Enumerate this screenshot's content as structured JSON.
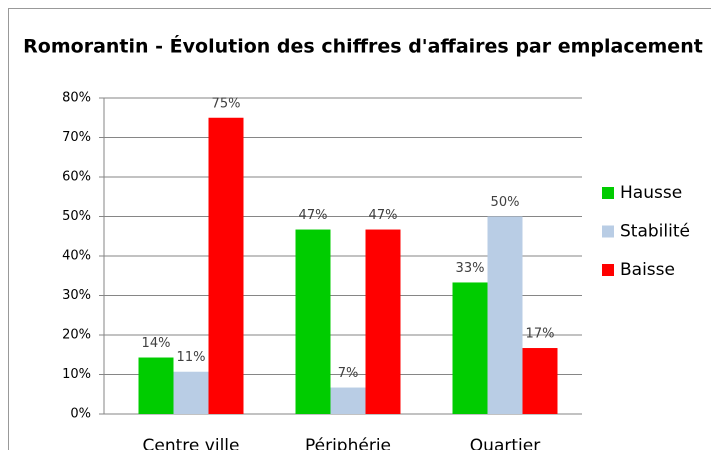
{
  "chart_data": {
    "type": "bar",
    "title": "Romorantin - Évolution des chiffres d'affaires par emplacement",
    "categories": [
      "Centre ville",
      "Périphérie",
      "Quartier"
    ],
    "series": [
      {
        "name": "Hausse",
        "color": "#00cc00",
        "values": [
          14.3,
          46.7,
          33.3
        ],
        "value_labels": [
          "14%",
          "47%",
          "33%"
        ]
      },
      {
        "name": "Stabilité",
        "color": "#b9cde5",
        "values": [
          10.7,
          6.7,
          50
        ],
        "value_labels": [
          "11%",
          "7%",
          "50%"
        ]
      },
      {
        "name": "Baisse",
        "color": "#ff0000",
        "values": [
          75,
          46.7,
          16.7
        ],
        "value_labels": [
          "75%",
          "47%",
          "17%"
        ]
      }
    ],
    "ylim": [
      0,
      80
    ],
    "yticks": [
      {
        "value": 0,
        "label": "0%"
      },
      {
        "value": 10,
        "label": "10%"
      },
      {
        "value": 20,
        "label": "20%"
      },
      {
        "value": 30,
        "label": "30%"
      },
      {
        "value": 40,
        "label": "40%"
      },
      {
        "value": 50,
        "label": "50%"
      },
      {
        "value": 60,
        "label": "60%"
      },
      {
        "value": 70,
        "label": "70%"
      },
      {
        "value": 80,
        "label": "80%"
      }
    ],
    "grid": true,
    "legend": "right"
  }
}
